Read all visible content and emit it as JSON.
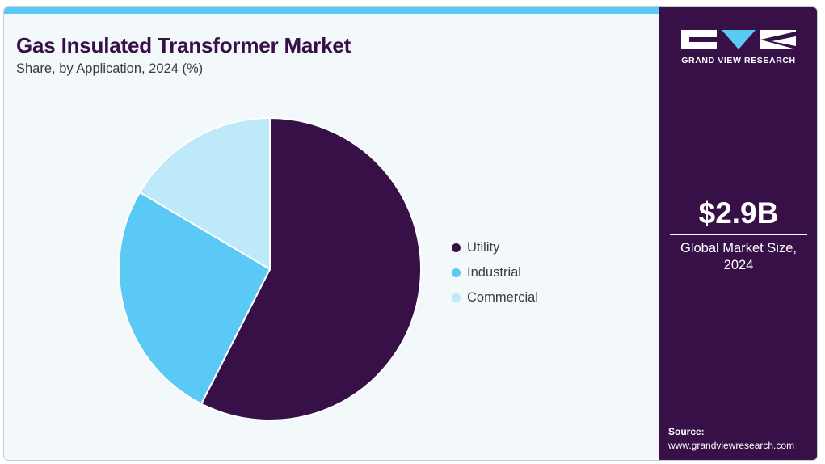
{
  "header": {
    "title": "Gas Insulated Transformer Market",
    "subtitle": "Share, by Application, 2024 (%)"
  },
  "chart_data": {
    "type": "pie",
    "title": "Gas Insulated Transformer Market",
    "subtitle": "Share, by Application, 2024 (%)",
    "legend_position": "right",
    "slices": [
      {
        "name": "Utility",
        "value": 57.5,
        "color": "#371047"
      },
      {
        "name": "Industrial",
        "value": 26.0,
        "color": "#5bc9f5"
      },
      {
        "name": "Commercial",
        "value": 16.5,
        "color": "#bde9f9"
      }
    ]
  },
  "sidebar": {
    "brand_name": "GRAND VIEW RESEARCH",
    "market_value": "$2.9B",
    "market_label_line1": "Global Market Size,",
    "market_label_line2": "2024",
    "source_title": "Source:",
    "source_url": "www.grandviewresearch.com"
  },
  "colors": {
    "brand_dark": "#371047",
    "accent": "#5bc9f5",
    "light_blue": "#bde9f9",
    "panel_bg": "#f3f8fb"
  }
}
